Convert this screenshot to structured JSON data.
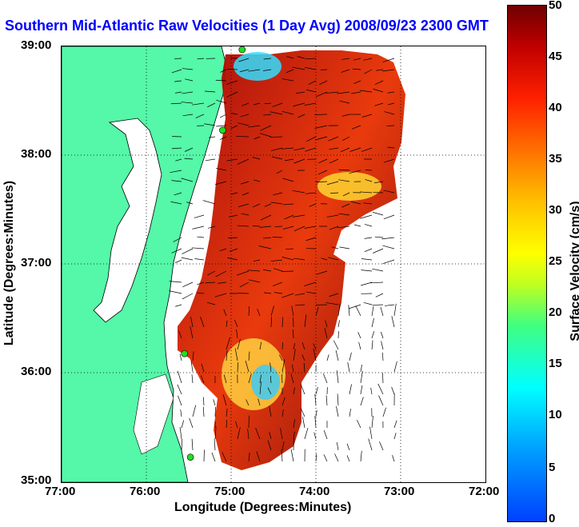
{
  "title": "Southern Mid-Atlantic Raw Velocities (1 Day Avg) 2008/09/23 2300 GMT",
  "xaxis": {
    "label": "Longitude (Degrees:Minutes)",
    "ticks": [
      "77:00",
      "76:00",
      "75:00",
      "74:00",
      "73:00",
      "72:00"
    ]
  },
  "yaxis": {
    "label": "Latitude (Degrees:Minutes)",
    "ticks": [
      "39:00",
      "38:00",
      "37:00",
      "36:00",
      "35:00"
    ]
  },
  "colorbar": {
    "label": "Surface Velocity (cm/s)",
    "ticks": [
      "50",
      "45",
      "40",
      "35",
      "30",
      "25",
      "20",
      "15",
      "10",
      "5",
      "0"
    ],
    "min": 0,
    "max": 50
  },
  "colors": {
    "land": "#55f7a8",
    "water": "#ffffff",
    "title": "#0000ff",
    "site": "#22dd22"
  },
  "map": {
    "lon_range": [
      -77,
      -72
    ],
    "lat_range": [
      35,
      39
    ],
    "grid": "dotted"
  },
  "sites": [
    {
      "lon": -74.87,
      "lat": 38.97
    },
    {
      "lon": -75.1,
      "lat": 38.23
    },
    {
      "lon": -75.55,
      "lat": 36.18
    },
    {
      "lon": -75.48,
      "lat": 35.23
    }
  ]
}
